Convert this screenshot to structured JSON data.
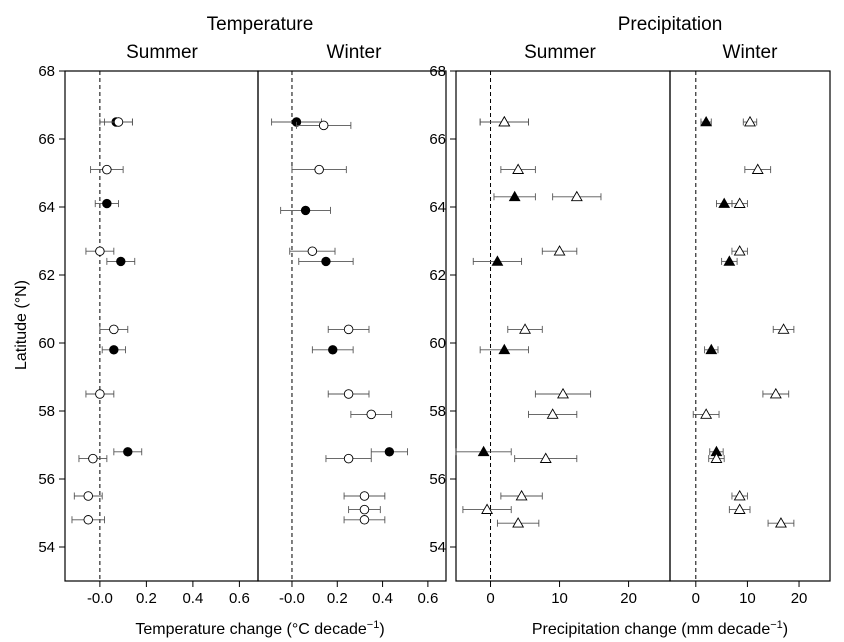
{
  "chart_data": {
    "type": "scatter",
    "group_titles": [
      "Temperature",
      "Precipitation"
    ],
    "ylabel": "Latitude (°N)",
    "ylim": [
      53,
      68
    ],
    "yticks": [
      54,
      56,
      58,
      60,
      62,
      64,
      66,
      68
    ],
    "groups": [
      {
        "title": "Temperature",
        "xlabel": "Temperature change  (°C decade",
        "xlabel_sup": "−1",
        "xlabel_end": ")",
        "marker": "circle",
        "panels": [
          {
            "subtitle": "Summer",
            "xlim": [
              -0.15,
              0.68
            ],
            "xticks": [
              -0.0,
              0.2,
              0.4,
              0.6
            ],
            "xtick_labels": [
              "-0.0",
              "0.2",
              "0.4",
              "0.6"
            ],
            "series": [
              {
                "fill": "filled",
                "points": [
                  {
                    "lat": 66.5,
                    "x": 0.07,
                    "err": 0.07
                  },
                  {
                    "lat": 64.1,
                    "x": 0.03,
                    "err": 0.05
                  },
                  {
                    "lat": 62.4,
                    "x": 0.09,
                    "err": 0.06
                  },
                  {
                    "lat": 59.8,
                    "x": 0.06,
                    "err": 0.05
                  },
                  {
                    "lat": 56.8,
                    "x": 0.12,
                    "err": 0.06
                  }
                ]
              },
              {
                "fill": "open",
                "points": [
                  {
                    "lat": 66.5,
                    "x": 0.08,
                    "err": 0.06
                  },
                  {
                    "lat": 65.1,
                    "x": 0.03,
                    "err": 0.07
                  },
                  {
                    "lat": 62.7,
                    "x": 0.0,
                    "err": 0.06
                  },
                  {
                    "lat": 60.4,
                    "x": 0.06,
                    "err": 0.06
                  },
                  {
                    "lat": 58.5,
                    "x": 0.0,
                    "err": 0.06
                  },
                  {
                    "lat": 56.6,
                    "x": -0.03,
                    "err": 0.06
                  },
                  {
                    "lat": 55.5,
                    "x": -0.05,
                    "err": 0.06
                  },
                  {
                    "lat": 54.8,
                    "x": -0.05,
                    "err": 0.07
                  }
                ]
              }
            ]
          },
          {
            "subtitle": "Winter",
            "xlim": [
              -0.15,
              0.68
            ],
            "xticks": [
              -0.0,
              0.2,
              0.4,
              0.6
            ],
            "xtick_labels": [
              "-0.0",
              "0.2",
              "0.4",
              "0.6"
            ],
            "series": [
              {
                "fill": "filled",
                "points": [
                  {
                    "lat": 66.5,
                    "x": 0.02,
                    "err": 0.11
                  },
                  {
                    "lat": 63.9,
                    "x": 0.06,
                    "err": 0.11
                  },
                  {
                    "lat": 62.4,
                    "x": 0.15,
                    "err": 0.12
                  },
                  {
                    "lat": 59.8,
                    "x": 0.18,
                    "err": 0.09
                  },
                  {
                    "lat": 56.8,
                    "x": 0.43,
                    "err": 0.08
                  }
                ]
              },
              {
                "fill": "open",
                "points": [
                  {
                    "lat": 66.4,
                    "x": 0.14,
                    "err": 0.12
                  },
                  {
                    "lat": 65.1,
                    "x": 0.12,
                    "err": 0.12
                  },
                  {
                    "lat": 62.7,
                    "x": 0.09,
                    "err": 0.1
                  },
                  {
                    "lat": 60.4,
                    "x": 0.25,
                    "err": 0.09
                  },
                  {
                    "lat": 58.5,
                    "x": 0.25,
                    "err": 0.09
                  },
                  {
                    "lat": 57.9,
                    "x": 0.35,
                    "err": 0.09
                  },
                  {
                    "lat": 56.6,
                    "x": 0.25,
                    "err": 0.1
                  },
                  {
                    "lat": 55.5,
                    "x": 0.32,
                    "err": 0.09
                  },
                  {
                    "lat": 55.1,
                    "x": 0.32,
                    "err": 0.07
                  },
                  {
                    "lat": 54.8,
                    "x": 0.32,
                    "err": 0.09
                  }
                ]
              }
            ]
          }
        ]
      },
      {
        "title": "Precipitation",
        "xlabel": "Precipitation change (mm decade",
        "xlabel_sup": "−1",
        "xlabel_end": ")",
        "marker": "triangle",
        "panels": [
          {
            "subtitle": "Summer",
            "xlim": [
              -5,
              26
            ],
            "xticks": [
              0,
              10,
              20
            ],
            "xtick_labels": [
              "0",
              "10",
              "20"
            ],
            "series": [
              {
                "fill": "filled",
                "points": [
                  {
                    "lat": 66.5,
                    "x": 2,
                    "err": 3.5
                  },
                  {
                    "lat": 64.3,
                    "x": 3.5,
                    "err": 3
                  },
                  {
                    "lat": 62.4,
                    "x": 1,
                    "err": 3.5
                  },
                  {
                    "lat": 59.8,
                    "x": 2,
                    "err": 3.5
                  },
                  {
                    "lat": 56.8,
                    "x": -1,
                    "err": 4
                  }
                ]
              },
              {
                "fill": "open",
                "points": [
                  {
                    "lat": 66.5,
                    "x": 2,
                    "err": 3.5
                  },
                  {
                    "lat": 65.1,
                    "x": 4,
                    "err": 2.5
                  },
                  {
                    "lat": 64.3,
                    "x": 12.5,
                    "err": 3.5
                  },
                  {
                    "lat": 62.7,
                    "x": 10,
                    "err": 2.5
                  },
                  {
                    "lat": 60.4,
                    "x": 5,
                    "err": 2.5
                  },
                  {
                    "lat": 58.5,
                    "x": 10.5,
                    "err": 4
                  },
                  {
                    "lat": 57.9,
                    "x": 9,
                    "err": 3.5
                  },
                  {
                    "lat": 56.6,
                    "x": 8,
                    "err": 4.5
                  },
                  {
                    "lat": 55.5,
                    "x": 4.5,
                    "err": 3
                  },
                  {
                    "lat": 55.1,
                    "x": -0.5,
                    "err": 3.5
                  },
                  {
                    "lat": 54.7,
                    "x": 4,
                    "err": 3
                  }
                ]
              }
            ]
          },
          {
            "subtitle": "Winter",
            "xlim": [
              -5,
              26
            ],
            "xticks": [
              0,
              10,
              20
            ],
            "xtick_labels": [
              "0",
              "10",
              "20"
            ],
            "series": [
              {
                "fill": "filled",
                "points": [
                  {
                    "lat": 66.5,
                    "x": 2,
                    "err": 1
                  },
                  {
                    "lat": 64.1,
                    "x": 5.5,
                    "err": 1.5
                  },
                  {
                    "lat": 62.4,
                    "x": 6.5,
                    "err": 1.5
                  },
                  {
                    "lat": 59.8,
                    "x": 3,
                    "err": 1.3
                  },
                  {
                    "lat": 56.8,
                    "x": 4,
                    "err": 1.3
                  }
                ]
              },
              {
                "fill": "open",
                "points": [
                  {
                    "lat": 66.5,
                    "x": 10.5,
                    "err": 1.3
                  },
                  {
                    "lat": 65.1,
                    "x": 12,
                    "err": 2.5
                  },
                  {
                    "lat": 64.1,
                    "x": 8.5,
                    "err": 1.5
                  },
                  {
                    "lat": 62.7,
                    "x": 8.5,
                    "err": 1.5
                  },
                  {
                    "lat": 60.4,
                    "x": 17,
                    "err": 2
                  },
                  {
                    "lat": 58.5,
                    "x": 15.5,
                    "err": 2.5
                  },
                  {
                    "lat": 57.9,
                    "x": 2,
                    "err": 2.5
                  },
                  {
                    "lat": 56.6,
                    "x": 4,
                    "err": 1.5
                  },
                  {
                    "lat": 55.5,
                    "x": 8.5,
                    "err": 1.5
                  },
                  {
                    "lat": 55.1,
                    "x": 8.5,
                    "err": 2
                  },
                  {
                    "lat": 54.7,
                    "x": 16.5,
                    "err": 2.5
                  }
                ]
              }
            ]
          }
        ]
      }
    ]
  }
}
